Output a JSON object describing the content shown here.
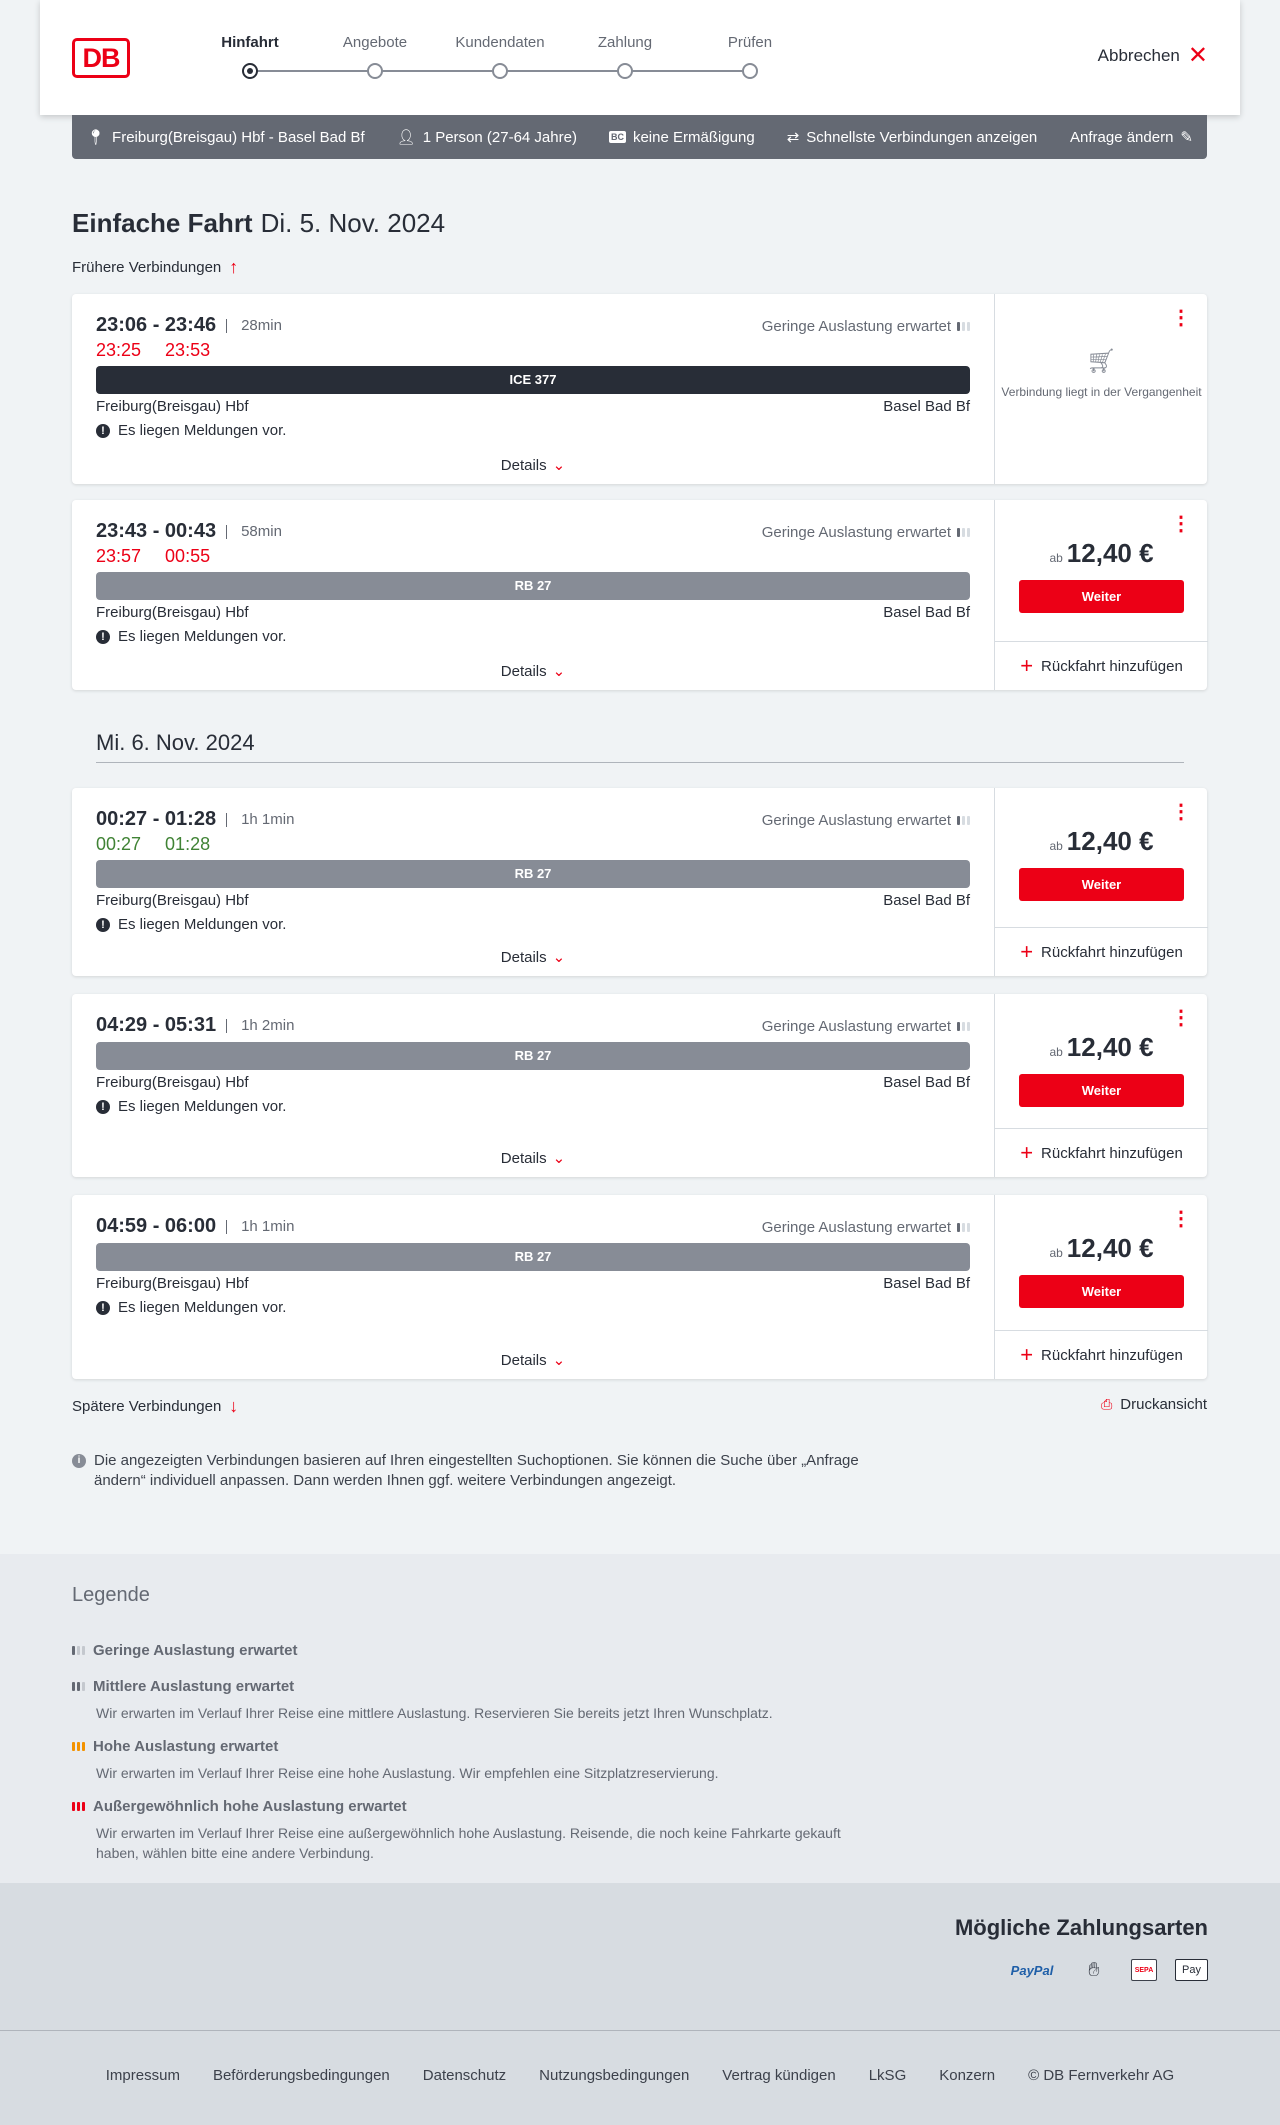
{
  "header": {
    "logo": "DB",
    "steps": [
      "Hinfahrt",
      "Angebote",
      "Kundendaten",
      "Zahlung",
      "Prüfen"
    ],
    "active_step": 0,
    "cancel": "Abbrechen"
  },
  "query": {
    "route": "Freiburg(Breisgau) Hbf - Basel Bad Bf",
    "persons": "1 Person (27-64 Jahre)",
    "discount_badge": "BC",
    "discount": "keine Ermäßigung",
    "fastest": "Schnellste Verbindungen anzeigen",
    "edit": "Anfrage ändern"
  },
  "title": {
    "bold": "Einfache Fahrt",
    "date": "Di. 5. Nov. 2024"
  },
  "earlier": "Frühere Verbindungen",
  "later": "Spätere Verbindungen",
  "print": "Druckansicht",
  "date2": "Mi. 6. Nov. 2024",
  "colors": {
    "accent": "#ec0016",
    "delay": "#ec0016",
    "ontime": "#408335",
    "ice": "#282d37",
    "regional": "#878c96"
  },
  "connections": [
    {
      "times": "23:06 - 23:46",
      "duration": "28min",
      "rt_dep": "23:25",
      "rt_arr": "23:53",
      "rt_status": "delay",
      "load": "Geringe Auslastung erwartet",
      "train": "ICE 377",
      "train_type": "ice",
      "from": "Freiburg(Breisgau) Hbf",
      "to": "Basel Bad Bf",
      "message": "Es liegen Meldungen vor.",
      "details": "Details",
      "past": "Verbindung liegt in der Vergangenheit"
    },
    {
      "times": "23:43 - 00:43",
      "duration": "58min",
      "rt_dep": "23:57",
      "rt_arr": "00:55",
      "rt_status": "delay",
      "load": "Geringe Auslastung erwartet",
      "train": "RB 27",
      "train_type": "regional",
      "from": "Freiburg(Breisgau) Hbf",
      "to": "Basel Bad Bf",
      "message": "Es liegen Meldungen vor.",
      "details": "Details",
      "price_prefix": "ab",
      "price": "12,40 €",
      "button": "Weiter",
      "return": "Rückfahrt hinzufügen"
    },
    {
      "times": "00:27 - 01:28",
      "duration": "1h 1min",
      "rt_dep": "00:27",
      "rt_arr": "01:28",
      "rt_status": "ontime",
      "load": "Geringe Auslastung erwartet",
      "train": "RB 27",
      "train_type": "regional",
      "from": "Freiburg(Breisgau) Hbf",
      "to": "Basel Bad Bf",
      "message": "Es liegen Meldungen vor.",
      "details": "Details",
      "price_prefix": "ab",
      "price": "12,40 €",
      "button": "Weiter",
      "return": "Rückfahrt hinzufügen"
    },
    {
      "times": "04:29 - 05:31",
      "duration": "1h 2min",
      "load": "Geringe Auslastung erwartet",
      "train": "RB 27",
      "train_type": "regional",
      "from": "Freiburg(Breisgau) Hbf",
      "to": "Basel Bad Bf",
      "message": "Es liegen Meldungen vor.",
      "details": "Details",
      "price_prefix": "ab",
      "price": "12,40 €",
      "button": "Weiter",
      "return": "Rückfahrt hinzufügen"
    },
    {
      "times": "04:59 - 06:00",
      "duration": "1h 1min",
      "load": "Geringe Auslastung erwartet",
      "train": "RB 27",
      "train_type": "regional",
      "from": "Freiburg(Breisgau) Hbf",
      "to": "Basel Bad Bf",
      "message": "Es liegen Meldungen vor.",
      "details": "Details",
      "price_prefix": "ab",
      "price": "12,40 €",
      "button": "Weiter",
      "return": "Rückfahrt hinzufügen"
    }
  ],
  "info": "Die angezeigten Verbindungen basieren auf Ihren eingestellten Suchoptionen. Sie können die Suche über „Anfrage ändern“ individuell anpassen. Dann werden Ihnen ggf. weitere Verbindungen angezeigt.",
  "legend": {
    "title": "Legende",
    "items": [
      {
        "title": "Geringe Auslastung erwartet",
        "desc": ""
      },
      {
        "title": "Mittlere Auslastung erwartet",
        "desc": "Wir erwarten im Verlauf Ihrer Reise eine mittlere Auslastung. Reservieren Sie bereits jetzt Ihren Wunschplatz."
      },
      {
        "title": "Hohe Auslastung erwartet",
        "desc": "Wir erwarten im Verlauf Ihrer Reise eine hohe Auslastung. Wir empfehlen eine Sitzplatzreservierung."
      },
      {
        "title": "Außergewöhnlich hohe Auslastung erwartet",
        "desc": "Wir erwarten im Verlauf Ihrer Reise eine außergewöhnlich hohe Auslastung. Reisende, die noch keine Fahrkarte gekauft haben, wählen bitte eine andere Verbindung."
      }
    ]
  },
  "payment": {
    "title": "Mögliche Zahlungsarten",
    "methods": [
      "PayPal",
      "SEPA",
      "Pay"
    ]
  },
  "footer": [
    "Impressum",
    "Beförderungsbedingungen",
    "Datenschutz",
    "Nutzungsbedingungen",
    "Vertrag kündigen",
    "LkSG",
    "Konzern",
    "© DB Fernverkehr AG"
  ]
}
